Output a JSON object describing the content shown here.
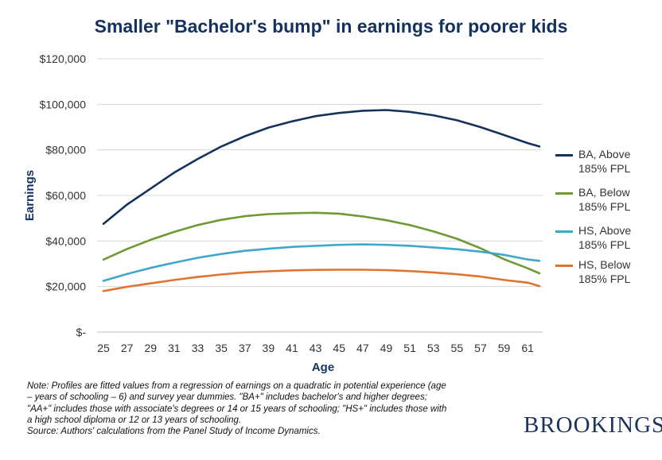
{
  "chart_data": {
    "type": "line",
    "title": "Smaller \"Bachelor's bump\" in earnings for poorer kids",
    "xlabel": "Age",
    "ylabel": "Earnings",
    "xlim": [
      25,
      62
    ],
    "ylim": [
      0,
      120000
    ],
    "x_ticks": [
      25,
      27,
      29,
      31,
      33,
      35,
      37,
      39,
      41,
      43,
      45,
      47,
      49,
      51,
      53,
      55,
      57,
      59,
      61
    ],
    "y_ticks": [
      0,
      20000,
      40000,
      60000,
      80000,
      100000,
      120000
    ],
    "y_tick_labels": [
      "$-",
      "$20,000",
      "$40,000",
      "$60,000",
      "$80,000",
      "$100,000",
      "$120,000"
    ],
    "grid": "horizontal",
    "legend_position": "right",
    "x": [
      25,
      27,
      29,
      31,
      33,
      35,
      37,
      39,
      41,
      43,
      45,
      47,
      49,
      51,
      53,
      55,
      57,
      59,
      61,
      62
    ],
    "series": [
      {
        "name": "BA, Above 185% FPL",
        "legend_lines": [
          "BA, Above",
          "185% FPL"
        ],
        "color": "#14325c",
        "values": [
          47500,
          56000,
          63000,
          70000,
          76000,
          81500,
          86000,
          89800,
          92500,
          94800,
          96200,
          97200,
          97500,
          96700,
          95200,
          93000,
          90000,
          86500,
          83000,
          81500
        ]
      },
      {
        "name": "BA, Below 185% FPL",
        "legend_lines": [
          "BA, Below",
          "185% FPL"
        ],
        "color": "#6e9a35",
        "values": [
          31800,
          36500,
          40500,
          44000,
          47000,
          49300,
          50900,
          51800,
          52200,
          52400,
          52000,
          50800,
          49100,
          47000,
          44200,
          41000,
          36800,
          32000,
          28000,
          25800
        ]
      },
      {
        "name": "HS, Above 185% FPL",
        "legend_lines": [
          "HS, Above",
          "185% FPL"
        ],
        "color": "#3ea8c9",
        "values": [
          22500,
          25500,
          28200,
          30500,
          32600,
          34300,
          35700,
          36600,
          37400,
          37900,
          38300,
          38500,
          38300,
          37900,
          37200,
          36400,
          35300,
          33900,
          31900,
          31300
        ]
      },
      {
        "name": "HS, Below 185% FPL",
        "legend_lines": [
          "HS, Below",
          "185% FPL"
        ],
        "color": "#e0742f",
        "values": [
          18000,
          19900,
          21400,
          22900,
          24200,
          25300,
          26200,
          26700,
          27100,
          27300,
          27400,
          27400,
          27200,
          26800,
          26200,
          25400,
          24400,
          22900,
          21700,
          20200
        ]
      }
    ]
  },
  "note_lines": [
    "Note: Profiles are fitted values from a regression of earnings on a quadratic in potential experience (age",
    "– years of schooling – 6) and survey year dummies. \"BA+\" includes bachelor's and higher degrees;",
    "\"AA+\" includes those with associate's degrees or 14 or 15 years of schooling; \"HS+\" includes those with",
    "a high school diploma or 12 or 13 years of schooling.",
    "Source: Authors' calculations from the Panel Study of Income Dynamics."
  ],
  "brand": "BROOKINGS"
}
